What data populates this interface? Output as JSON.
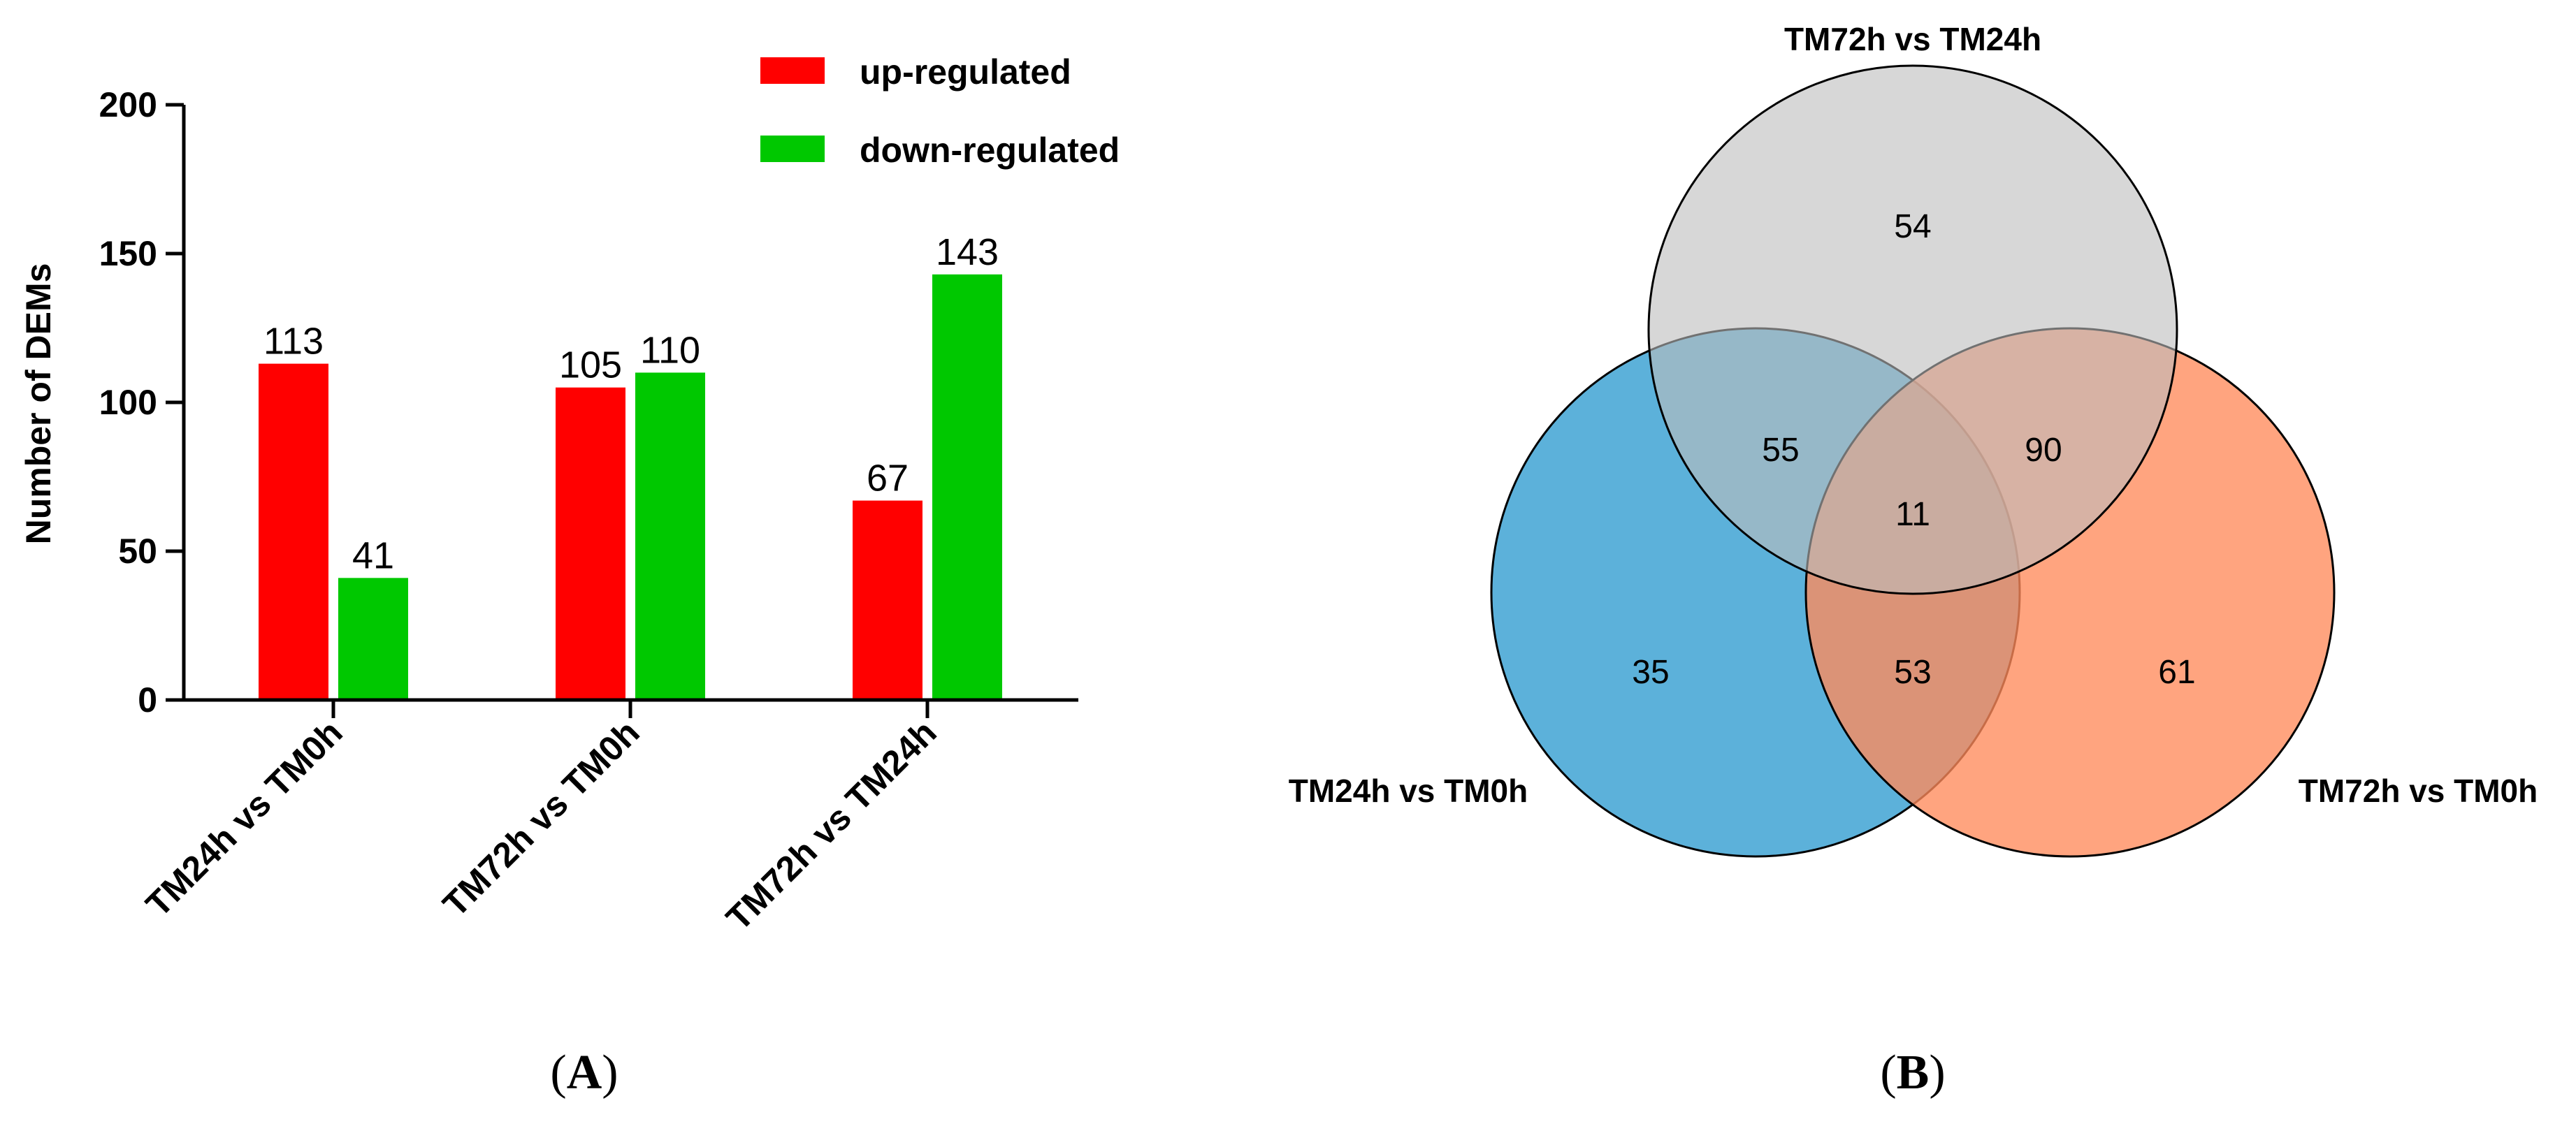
{
  "chart_data": [
    {
      "type": "bar",
      "panel_label": "A",
      "ylabel": "Number of DEMs",
      "ylim": [
        0,
        200
      ],
      "yticks": [
        0,
        50,
        100,
        150,
        200
      ],
      "categories": [
        "TM24h vs TM0h",
        "TM72h vs TM0h",
        "TM72h vs TM24h"
      ],
      "series": [
        {
          "name": "up-regulated",
          "color": "#ff0000",
          "values": [
            113,
            105,
            67
          ]
        },
        {
          "name": "down-regulated",
          "color": "#00c800",
          "values": [
            41,
            110,
            143
          ]
        }
      ],
      "legend_position": "top-right"
    },
    {
      "type": "venn",
      "panel_label": "B",
      "sets": [
        {
          "name": "TM72h vs TM24h",
          "color": "#bdbdbd"
        },
        {
          "name": "TM24h vs TM0h",
          "color": "#4aa9d6"
        },
        {
          "name": "TM72h vs TM0h",
          "color": "#ff8a5b"
        }
      ],
      "regions": {
        "only_72v24": 54,
        "only_24v0": 35,
        "only_72v0": 61,
        "72v24_and_24v0": 55,
        "72v24_and_72v0": 90,
        "24v0_and_72v0": 53,
        "all_three": 11
      }
    }
  ]
}
